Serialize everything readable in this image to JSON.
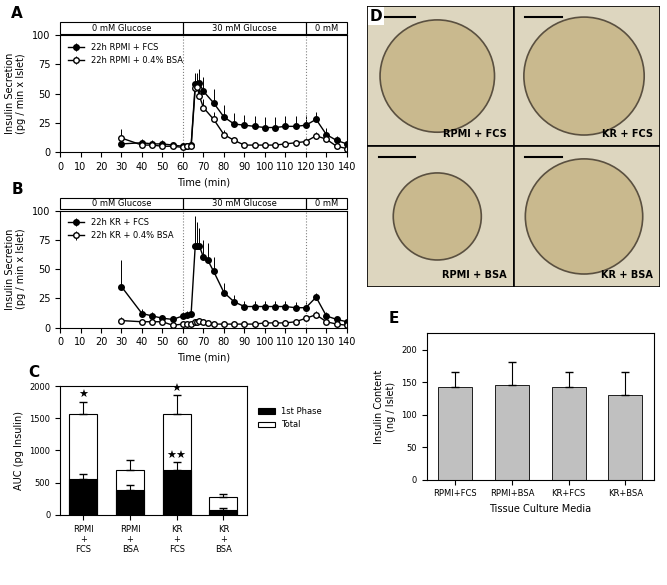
{
  "chart_data": [
    {
      "type": "line",
      "title": "A",
      "x": [
        30,
        40,
        45,
        50,
        55,
        60,
        62,
        64,
        66,
        67,
        68,
        70,
        75,
        80,
        85,
        90,
        95,
        100,
        105,
        110,
        115,
        120,
        125,
        130,
        135,
        140
      ],
      "x_label": "Time (min)",
      "y_label": "Insulin Secretion\n(pg / min x Islet)",
      "xlim": [
        0,
        140
      ],
      "xticks": [
        0,
        10,
        20,
        30,
        40,
        50,
        60,
        70,
        80,
        90,
        100,
        110,
        120,
        130,
        140
      ],
      "ylim": [
        0,
        100
      ],
      "yticks": [
        0,
        25,
        50,
        75,
        100
      ],
      "legend": "upper left",
      "glucose_periods": [
        {
          "label": "0 mM Glucose",
          "start": 0,
          "end": 60
        },
        {
          "label": "30 mM Glucose",
          "start": 60,
          "end": 120
        },
        {
          "label": "0 mM",
          "start": 120,
          "end": 140
        }
      ],
      "series": [
        {
          "name": "22h RPMI + FCS",
          "color": "#000000",
          "marker": "filled circle",
          "values": [
            7,
            8,
            7,
            7,
            6,
            5,
            5,
            6,
            58,
            58,
            59,
            52,
            42,
            30,
            24,
            23,
            22,
            21,
            21,
            22,
            22,
            23,
            28,
            15,
            10,
            7
          ],
          "errors": [
            6,
            3,
            3,
            3,
            2,
            2,
            2,
            2,
            10,
            10,
            12,
            12,
            12,
            10,
            9,
            9,
            9,
            9,
            9,
            9,
            9,
            9,
            6,
            6,
            4,
            3
          ]
        },
        {
          "name": "22h RPMI + 0.4% BSA",
          "color": "#000000",
          "marker": "open circle",
          "values": [
            12,
            6,
            6,
            5,
            5,
            4,
            5,
            5,
            55,
            56,
            48,
            38,
            28,
            15,
            10,
            6,
            6,
            6,
            6,
            7,
            8,
            9,
            14,
            11,
            5,
            3
          ],
          "errors": [
            8,
            2,
            2,
            2,
            2,
            2,
            2,
            2,
            8,
            8,
            8,
            7,
            6,
            4,
            3,
            2,
            2,
            2,
            2,
            2,
            2,
            3,
            3,
            3,
            2,
            1
          ]
        }
      ]
    },
    {
      "type": "line",
      "title": "B",
      "x": [
        30,
        40,
        45,
        50,
        55,
        60,
        62,
        64,
        66,
        67,
        68,
        70,
        72,
        75,
        80,
        85,
        90,
        95,
        100,
        105,
        110,
        115,
        120,
        125,
        130,
        135,
        140
      ],
      "x_label": "Time (min)",
      "y_label": "Insulin Secretion\n(pg / min x Islet)",
      "xlim": [
        0,
        140
      ],
      "xticks": [
        0,
        10,
        20,
        30,
        40,
        50,
        60,
        70,
        80,
        90,
        100,
        110,
        120,
        130,
        140
      ],
      "ylim": [
        0,
        100
      ],
      "yticks": [
        0,
        25,
        50,
        75,
        100
      ],
      "legend": "upper left",
      "glucose_periods": [
        {
          "label": "0 mM Glucose",
          "start": 0,
          "end": 60
        },
        {
          "label": "30 mM Glucose",
          "start": 60,
          "end": 120
        },
        {
          "label": "0 mM",
          "start": 120,
          "end": 140
        }
      ],
      "series": [
        {
          "name": "22h KR + FCS",
          "color": "#000000",
          "marker": "filled circle",
          "values": [
            35,
            12,
            10,
            8,
            7,
            10,
            11,
            12,
            70,
            70,
            70,
            60,
            58,
            48,
            30,
            22,
            18,
            18,
            18,
            18,
            18,
            17,
            17,
            26,
            10,
            7,
            5
          ],
          "errors": [
            23,
            4,
            3,
            3,
            3,
            3,
            3,
            3,
            25,
            20,
            15,
            15,
            14,
            12,
            8,
            6,
            5,
            5,
            5,
            5,
            5,
            5,
            5,
            4,
            3,
            2,
            2
          ]
        },
        {
          "name": "22h KR + 0.4% BSA",
          "color": "#000000",
          "marker": "open circle",
          "values": [
            6,
            5,
            5,
            5,
            2,
            3,
            3,
            3,
            5,
            5,
            6,
            5,
            4,
            3,
            3,
            3,
            3,
            3,
            4,
            4,
            4,
            5,
            8,
            11,
            5,
            3,
            2
          ],
          "errors": [
            3,
            2,
            2,
            2,
            1,
            1,
            1,
            1,
            2,
            2,
            2,
            2,
            2,
            1,
            1,
            1,
            1,
            1,
            1,
            1,
            1,
            2,
            2,
            3,
            2,
            1,
            1
          ]
        }
      ]
    },
    {
      "type": "bar",
      "title": "C",
      "categories": [
        "RPMI\n+\nFCS",
        "RPMI\n+\nBSA",
        "KR\n+\nFCS",
        "KR\n+\nBSA"
      ],
      "y_label": "AUC (pg Insulin)",
      "ylim": [
        0,
        2000
      ],
      "yticks": [
        0,
        500,
        1000,
        1500,
        2000
      ],
      "legend": "right",
      "series": [
        {
          "name": "Total",
          "color": "#ffffff",
          "values": [
            1560,
            690,
            1560,
            270
          ],
          "errors": [
            200,
            160,
            300,
            50
          ]
        },
        {
          "name": "1st Phase",
          "color": "#000000",
          "values": [
            560,
            390,
            690,
            80
          ],
          "errors": [
            70,
            80,
            130,
            20
          ]
        }
      ],
      "annotations": [
        {
          "text": "★",
          "category": 0,
          "series": "Total"
        },
        {
          "text": "★",
          "category": 2,
          "series": "Total"
        },
        {
          "text": "★★",
          "category": 2,
          "series": "1st Phase"
        }
      ]
    },
    {
      "type": "bar",
      "title": "E",
      "categories": [
        "RPMI+FCS",
        "RPMI+BSA",
        "KR+FCS",
        "KR+BSA"
      ],
      "x_label": "Tissue Culture Media",
      "y_label": "Insulin Content\n(ng / Islet)",
      "ylim": [
        0,
        225
      ],
      "yticks": [
        0,
        50,
        100,
        150,
        200
      ],
      "color": "#c0c0c0",
      "values": [
        143,
        145,
        143,
        131
      ],
      "errors": [
        22,
        36,
        22,
        34
      ]
    }
  ],
  "micrographs": {
    "title": "D",
    "labels": [
      "RPMI + FCS",
      "KR + FCS",
      "RPMI + BSA",
      "KR + BSA"
    ]
  }
}
